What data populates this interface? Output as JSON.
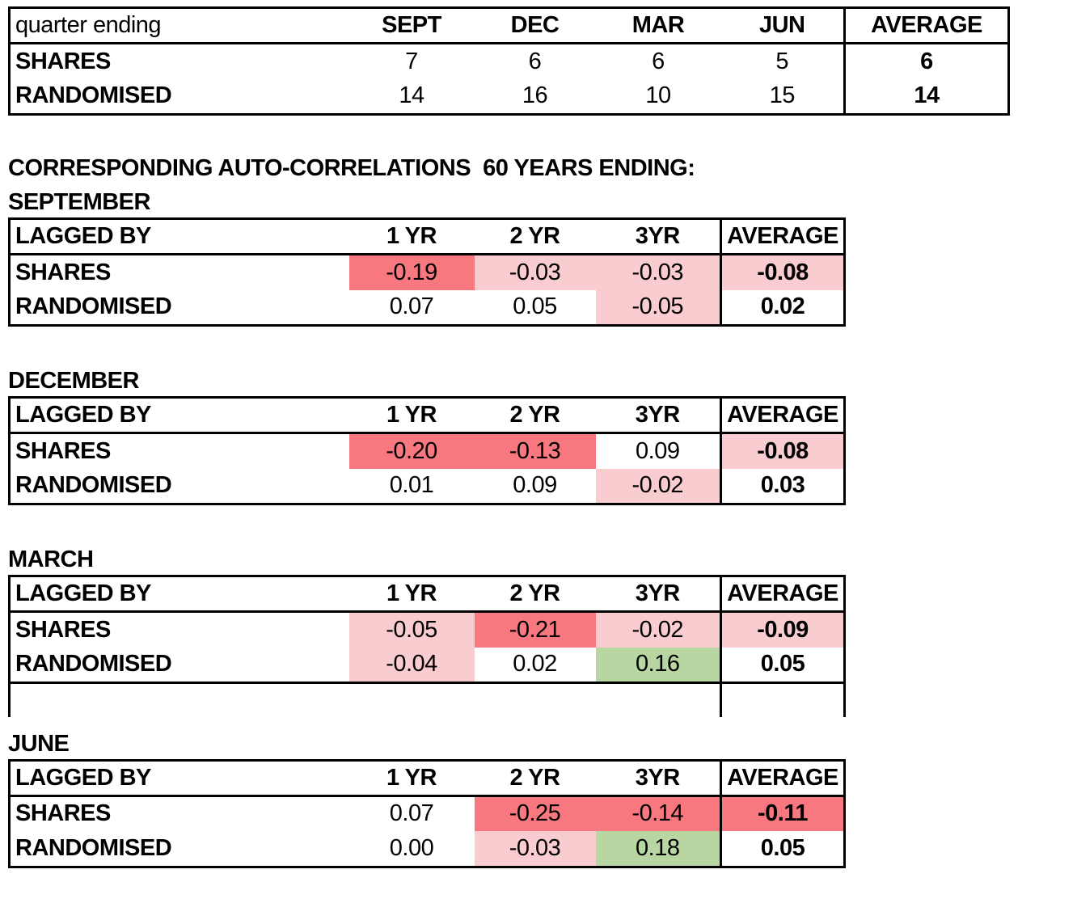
{
  "palette": {
    "strong_negative_red": "#f7787e",
    "mild_negative_pink": "#f9cdd0",
    "positive_green": "#b8d6a2",
    "neutral_white": "#ffffff",
    "border_black": "#000000"
  },
  "summary": {
    "col_headers": [
      "quarter ending",
      "SEPT",
      "DEC",
      "MAR",
      "JUN",
      "AVERAGE"
    ],
    "rows": [
      {
        "label": "SHARES",
        "values": [
          "7",
          "6",
          "6",
          "5"
        ],
        "average": "6"
      },
      {
        "label": "RANDOMISED",
        "values": [
          "14",
          "16",
          "10",
          "15"
        ],
        "average": "14"
      }
    ]
  },
  "section_title": "CORRESPONDING AUTO-CORRELATIONS  60 YEARS ENDING:",
  "tables": [
    {
      "month": "SEPTEMBER",
      "headers": [
        "LAGGED BY",
        "1 YR",
        "2 YR",
        "3YR",
        "AVERAGE"
      ],
      "rows": [
        {
          "label": "SHARES",
          "cells": [
            {
              "v": "-0.19",
              "bg": "#f7787e"
            },
            {
              "v": "-0.03",
              "bg": "#f9cdd0"
            },
            {
              "v": "-0.03",
              "bg": "#f9cdd0"
            },
            {
              "v": "-0.08",
              "bg": "#f9cdd0"
            }
          ]
        },
        {
          "label": "RANDOMISED",
          "cells": [
            {
              "v": "0.07",
              "bg": "#ffffff"
            },
            {
              "v": "0.05",
              "bg": "#ffffff"
            },
            {
              "v": "-0.05",
              "bg": "#f9cdd0"
            },
            {
              "v": "0.02",
              "bg": "#ffffff"
            }
          ]
        }
      ]
    },
    {
      "month": "DECEMBER",
      "headers": [
        "LAGGED BY",
        "1 YR",
        "2 YR",
        "3YR",
        "AVERAGE"
      ],
      "rows": [
        {
          "label": "SHARES",
          "cells": [
            {
              "v": "-0.20",
              "bg": "#f7787e"
            },
            {
              "v": "-0.13",
              "bg": "#f7787e"
            },
            {
              "v": "0.09",
              "bg": "#ffffff"
            },
            {
              "v": "-0.08",
              "bg": "#f9cdd0"
            }
          ]
        },
        {
          "label": "RANDOMISED",
          "cells": [
            {
              "v": "0.01",
              "bg": "#ffffff"
            },
            {
              "v": "0.09",
              "bg": "#ffffff"
            },
            {
              "v": "-0.02",
              "bg": "#f9cdd0"
            },
            {
              "v": "0.03",
              "bg": "#ffffff"
            }
          ]
        }
      ]
    },
    {
      "month": "MARCH",
      "headers": [
        "LAGGED BY",
        "1 YR",
        "2 YR",
        "3YR",
        "AVERAGE"
      ],
      "rows": [
        {
          "label": "SHARES",
          "cells": [
            {
              "v": "-0.05",
              "bg": "#f9cdd0"
            },
            {
              "v": "-0.21",
              "bg": "#f7787e"
            },
            {
              "v": "-0.02",
              "bg": "#f9cdd0"
            },
            {
              "v": "-0.09",
              "bg": "#f9cdd0"
            }
          ]
        },
        {
          "label": "RANDOMISED",
          "cells": [
            {
              "v": "-0.04",
              "bg": "#f9cdd0"
            },
            {
              "v": "0.02",
              "bg": "#ffffff"
            },
            {
              "v": "0.16",
              "bg": "#b8d6a2"
            },
            {
              "v": "0.05",
              "bg": "#ffffff"
            }
          ]
        }
      ]
    },
    {
      "month": "JUNE",
      "headers": [
        "LAGGED BY",
        "1 YR",
        "2 YR",
        "3YR",
        "AVERAGE"
      ],
      "rows": [
        {
          "label": "SHARES",
          "cells": [
            {
              "v": "0.07",
              "bg": "#ffffff"
            },
            {
              "v": "-0.25",
              "bg": "#f7787e"
            },
            {
              "v": "-0.14",
              "bg": "#f7787e"
            },
            {
              "v": "-0.11",
              "bg": "#f7787e"
            }
          ]
        },
        {
          "label": "RANDOMISED",
          "cells": [
            {
              "v": "0.00",
              "bg": "#ffffff"
            },
            {
              "v": "-0.03",
              "bg": "#f9cdd0"
            },
            {
              "v": "0.18",
              "bg": "#b8d6a2"
            },
            {
              "v": "0.05",
              "bg": "#ffffff"
            }
          ]
        }
      ]
    }
  ]
}
